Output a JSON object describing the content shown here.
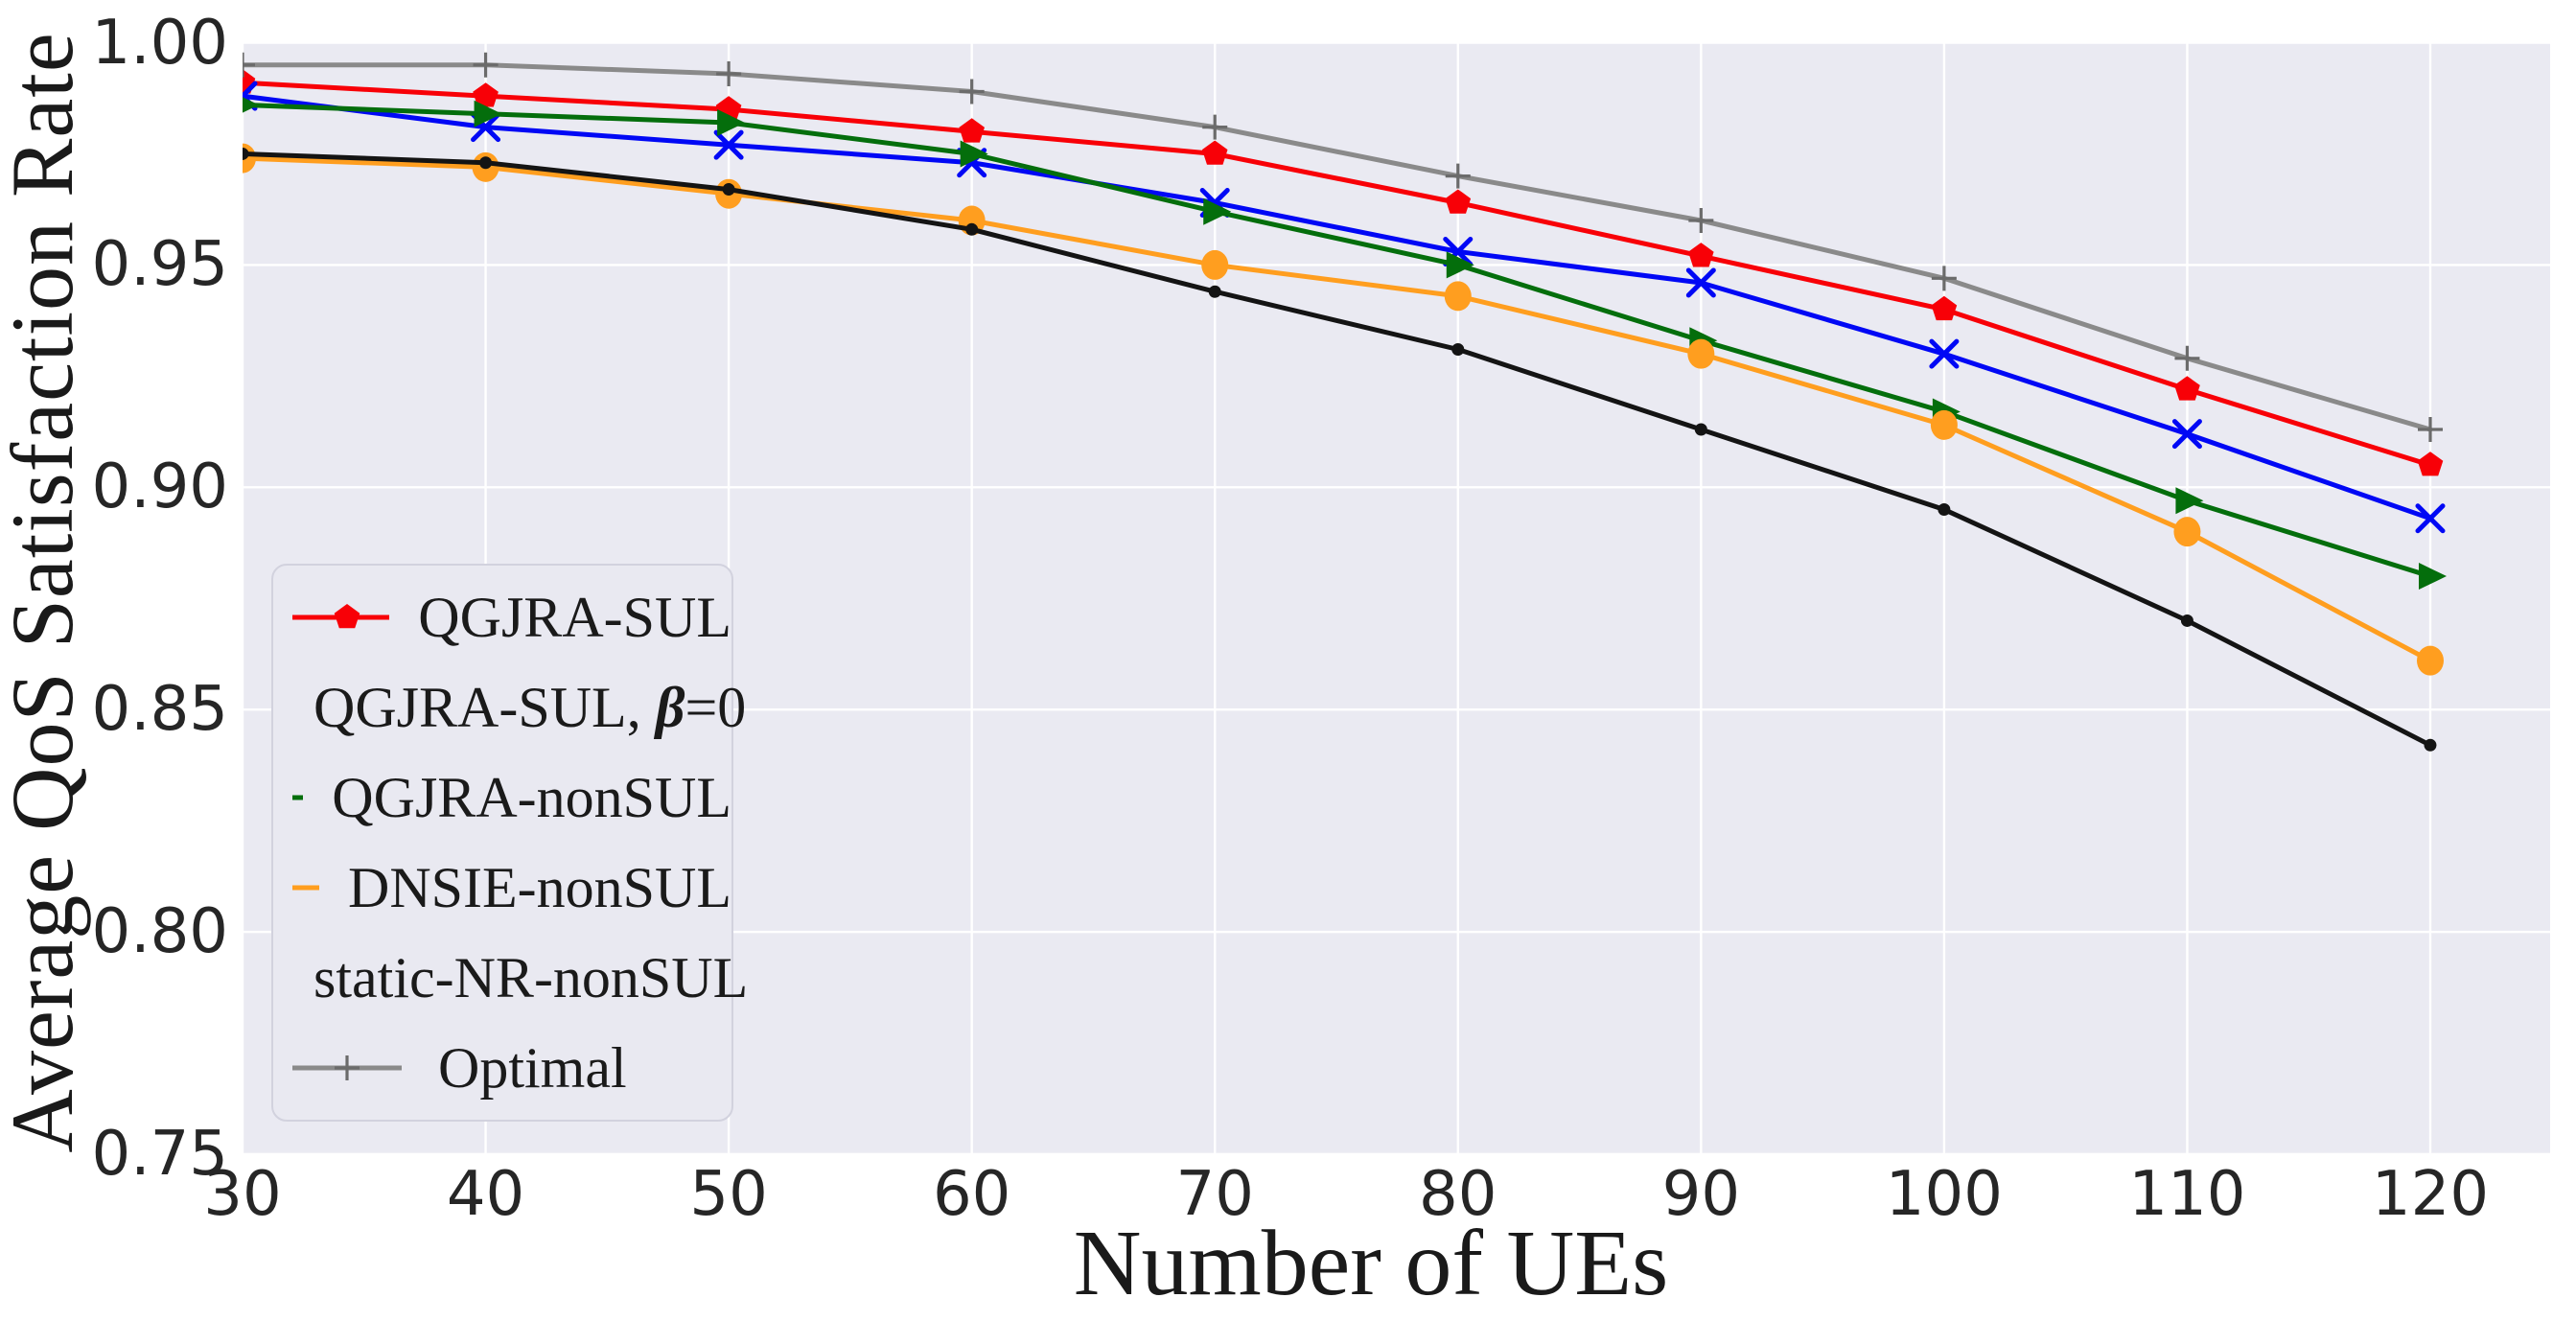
{
  "figure": {
    "background": "#ffffff",
    "plot_background": "#eaeaf2",
    "grid_color": "#ffffff",
    "text_color": "#1a1a1a"
  },
  "chart_data": {
    "type": "line",
    "title": "",
    "xlabel": "Number of UEs",
    "ylabel": "Average QoS Satisfaction Rate",
    "xlim": [
      30,
      125
    ],
    "ylim": [
      0.75,
      1.0
    ],
    "grid": true,
    "legend_position": "lower-left",
    "x": [
      30,
      40,
      50,
      60,
      70,
      80,
      90,
      100,
      110,
      120
    ],
    "xtick_labels": [
      "30",
      "40",
      "50",
      "60",
      "70",
      "80",
      "90",
      "100",
      "110",
      "120"
    ],
    "yticks": [
      0.75,
      0.8,
      0.85,
      0.9,
      0.95,
      1.0
    ],
    "ytick_labels": [
      "0.75",
      "0.80",
      "0.85",
      "0.90",
      "0.95",
      "1.00"
    ],
    "series": [
      {
        "name": "QGJRA-SUL",
        "color": "#f80007",
        "marker": "pentagon",
        "values": [
          0.991,
          0.988,
          0.985,
          0.98,
          0.975,
          0.964,
          0.952,
          0.94,
          0.922,
          0.905
        ]
      },
      {
        "name": "QGJRA-SUL, β=0",
        "color": "#0008f5",
        "marker": "x",
        "values": [
          0.988,
          0.981,
          0.977,
          0.973,
          0.964,
          0.953,
          0.946,
          0.93,
          0.912,
          0.893
        ]
      },
      {
        "name": "QGJRA-nonSUL",
        "color": "#046e0c",
        "marker": "triangle-right",
        "values": [
          0.986,
          0.984,
          0.982,
          0.975,
          0.962,
          0.95,
          0.933,
          0.917,
          0.897,
          0.88
        ]
      },
      {
        "name": "DNSIE-nonSUL",
        "color": "#ff9e1f",
        "marker": "circle",
        "values": [
          0.974,
          0.972,
          0.966,
          0.96,
          0.95,
          0.943,
          0.93,
          0.914,
          0.89,
          0.861
        ]
      },
      {
        "name": "static-NR-nonSUL",
        "color": "#141414",
        "marker": "dot",
        "values": [
          0.975,
          0.973,
          0.967,
          0.958,
          0.944,
          0.931,
          0.913,
          0.895,
          0.87,
          0.842
        ]
      },
      {
        "name": "Optimal",
        "color": "#8a8a8a",
        "marker": "plus",
        "values": [
          0.995,
          0.995,
          0.993,
          0.989,
          0.981,
          0.97,
          0.96,
          0.947,
          0.929,
          0.913
        ]
      }
    ]
  }
}
